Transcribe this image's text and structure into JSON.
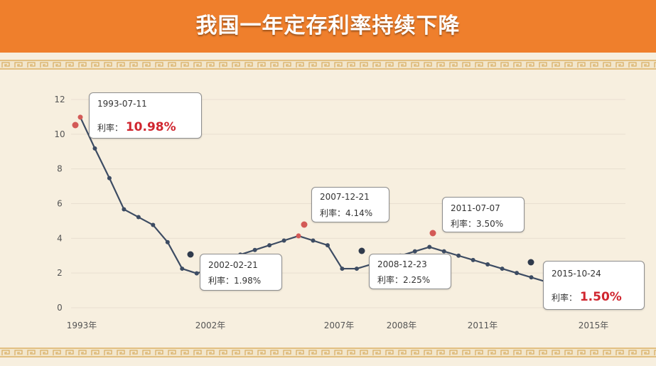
{
  "title": "我国一年定存利率持续下降",
  "rate_prefix": "利率：",
  "callouts": [
    {
      "date": "1993-07-11",
      "rate": "10.98%"
    },
    {
      "date": "2002-02-21",
      "rate": "1.98%"
    },
    {
      "date": "2007-12-21",
      "rate": "4.14%"
    },
    {
      "date": "2008-12-23",
      "rate": "2.25%"
    },
    {
      "date": "2011-07-07",
      "rate": "3.50%"
    },
    {
      "date": "2015-10-24",
      "rate": "1.50%"
    }
  ],
  "chart_data": {
    "type": "line",
    "ylim": [
      0,
      12
    ],
    "yticks": [
      "0",
      "2",
      "4",
      "6",
      "8",
      "10",
      "12"
    ],
    "xticks": [
      "1993年",
      "2002年",
      "2007年",
      "2008年",
      "2011年",
      "2015年"
    ],
    "grid": true,
    "line_color": "#3d4c63",
    "series": [
      {
        "values": [
          10.98,
          9.18,
          7.47,
          5.67,
          5.22,
          4.77,
          3.78,
          2.25,
          1.98,
          2.25,
          2.52,
          3.06,
          3.33,
          3.6,
          3.87,
          4.14,
          3.87,
          3.6,
          2.25,
          2.25,
          2.5,
          2.75,
          3.0,
          3.25,
          3.5,
          3.25,
          3.0,
          2.75,
          2.5,
          2.25,
          2.0,
          1.75,
          1.5
        ]
      }
    ],
    "colors": {
      "line": "#3d4c63",
      "marker": "#d35a57",
      "dark_marker": "#2f3a4c",
      "grid": "#e8dfd0"
    }
  }
}
